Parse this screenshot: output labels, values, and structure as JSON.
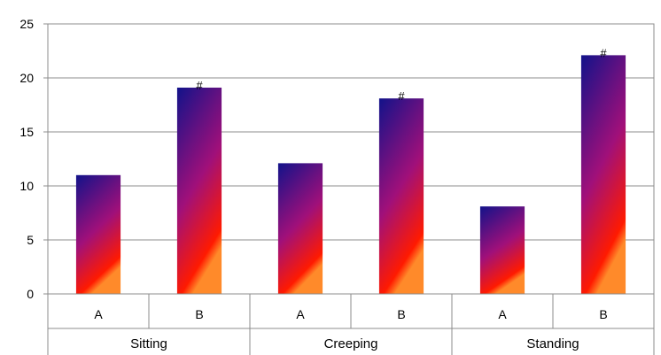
{
  "chart_data": {
    "type": "bar",
    "groups": [
      "Sitting",
      "Creeping",
      "Standing"
    ],
    "categories": [
      "A",
      "B",
      "A",
      "B",
      "A",
      "B"
    ],
    "values": [
      11,
      19.1,
      12.1,
      18.1,
      8.1,
      22.1
    ],
    "markers": [
      "",
      "#",
      "",
      "#",
      "",
      "#"
    ],
    "ylim": [
      0,
      25
    ],
    "yticks": [
      "0",
      "5",
      "10",
      "15",
      "20",
      "25"
    ],
    "title": "",
    "xlabel": "",
    "ylabel": "",
    "grid": true,
    "legend": "none",
    "colors": {
      "bar_top": "#12128a",
      "bar_mid": "#a0107a",
      "bar_bottom": "#ff1a00",
      "bar_glow": "#ff8a2a",
      "grid": "#8c8c8c",
      "axis": "#8c8c8c",
      "frame": "#8c8c8c"
    }
  }
}
